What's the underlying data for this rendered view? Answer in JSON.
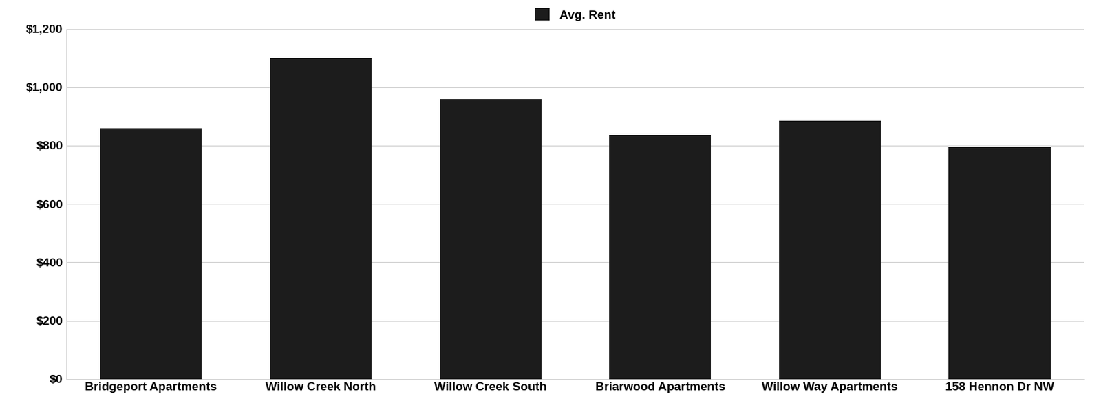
{
  "chart_data": {
    "type": "bar",
    "categories": [
      "Bridgeport Apartments",
      "Willow Creek North",
      "Willow Creek South",
      "Briarwood Apartments",
      "Willow Way Apartments",
      "158 Hennon Dr NW"
    ],
    "series": [
      {
        "name": "Avg. Rent",
        "color": "#1c1c1c",
        "values": [
          860,
          1100,
          960,
          835,
          885,
          795
        ]
      }
    ],
    "ylim": [
      0,
      1200
    ],
    "yticks": [
      {
        "value": 0,
        "label": "$0"
      },
      {
        "value": 200,
        "label": "$200"
      },
      {
        "value": 400,
        "label": "$400"
      },
      {
        "value": 600,
        "label": "$600"
      },
      {
        "value": 800,
        "label": "$800"
      },
      {
        "value": 1000,
        "label": "$1,000"
      },
      {
        "value": 1200,
        "label": "$1,200"
      }
    ],
    "grid": true,
    "legend": "upper center"
  }
}
